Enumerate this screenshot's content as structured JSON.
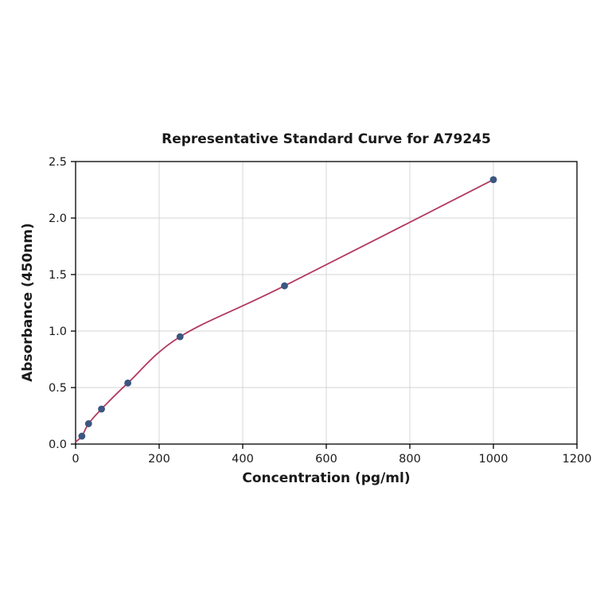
{
  "chart_data": {
    "type": "scatter",
    "title": "Representative Standard Curve for A79245",
    "xlabel": "Concentration (pg/ml)",
    "ylabel": "Absorbance (450nm)",
    "x": [
      15,
      31,
      62,
      125,
      250,
      500,
      1000
    ],
    "y": [
      0.07,
      0.18,
      0.31,
      0.54,
      0.95,
      1.4,
      2.34
    ],
    "curve_start": {
      "x": 0,
      "y": 0.02
    },
    "xlim": [
      0,
      1200
    ],
    "ylim": [
      0,
      2.5
    ],
    "x_ticks": [
      0,
      200,
      400,
      600,
      800,
      1000,
      1200
    ],
    "x_tick_labels": [
      "0",
      "200",
      "400",
      "600",
      "800",
      "1000",
      "1200"
    ],
    "y_ticks": [
      0.0,
      0.5,
      1.0,
      1.5,
      2.0,
      2.5
    ],
    "y_tick_labels": [
      "0.0",
      "0.5",
      "1.0",
      "1.5",
      "2.0",
      "2.5"
    ],
    "grid": true,
    "legend": "none",
    "colors": {
      "curve": "#b23a5f",
      "points": "#3b5680",
      "grid": "#d4d4d4",
      "axis": "#000000",
      "background": "#ffffff"
    }
  }
}
